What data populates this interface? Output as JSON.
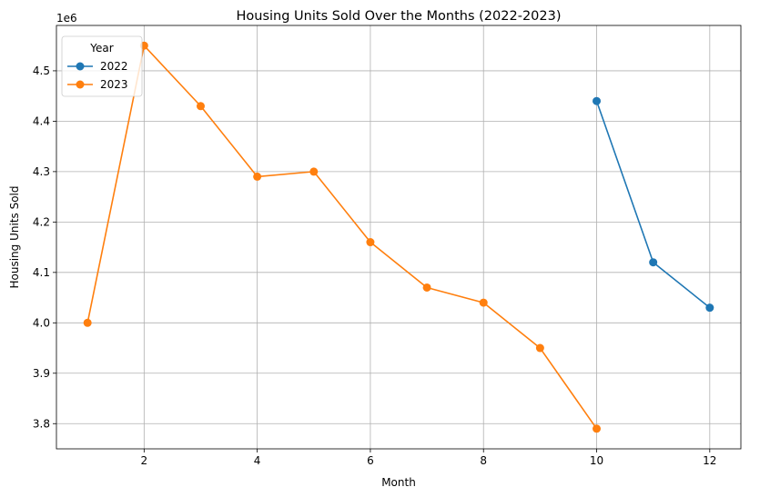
{
  "chart_data": {
    "type": "line",
    "title": "Housing Units Sold Over the Months (2022-2023)",
    "xlabel": "Month",
    "ylabel": "Housing Units Sold",
    "y_offset_label": "1e6",
    "xlim": [
      0.45,
      12.55
    ],
    "ylim": [
      3750000,
      4590000
    ],
    "x_ticks": [
      2,
      4,
      6,
      8,
      10,
      12
    ],
    "y_ticks": [
      3800000,
      3900000,
      4000000,
      4100000,
      4200000,
      4300000,
      4400000,
      4500000
    ],
    "y_tick_labels": [
      "3.8",
      "3.9",
      "4.0",
      "4.1",
      "4.2",
      "4.3",
      "4.4",
      "4.5"
    ],
    "grid": true,
    "legend": {
      "title": "Year",
      "placement": "top-left"
    },
    "series": [
      {
        "name": "2022",
        "color": "#1f77b4",
        "x": [
          10,
          11,
          12
        ],
        "values": [
          4440000,
          4120000,
          4030000
        ]
      },
      {
        "name": "2023",
        "color": "#ff7f0e",
        "x": [
          1,
          2,
          3,
          4,
          5,
          6,
          7,
          8,
          9,
          10
        ],
        "values": [
          4000000,
          4550000,
          4430000,
          4290000,
          4300000,
          4160000,
          4070000,
          4040000,
          3950000,
          3790000
        ]
      }
    ]
  }
}
